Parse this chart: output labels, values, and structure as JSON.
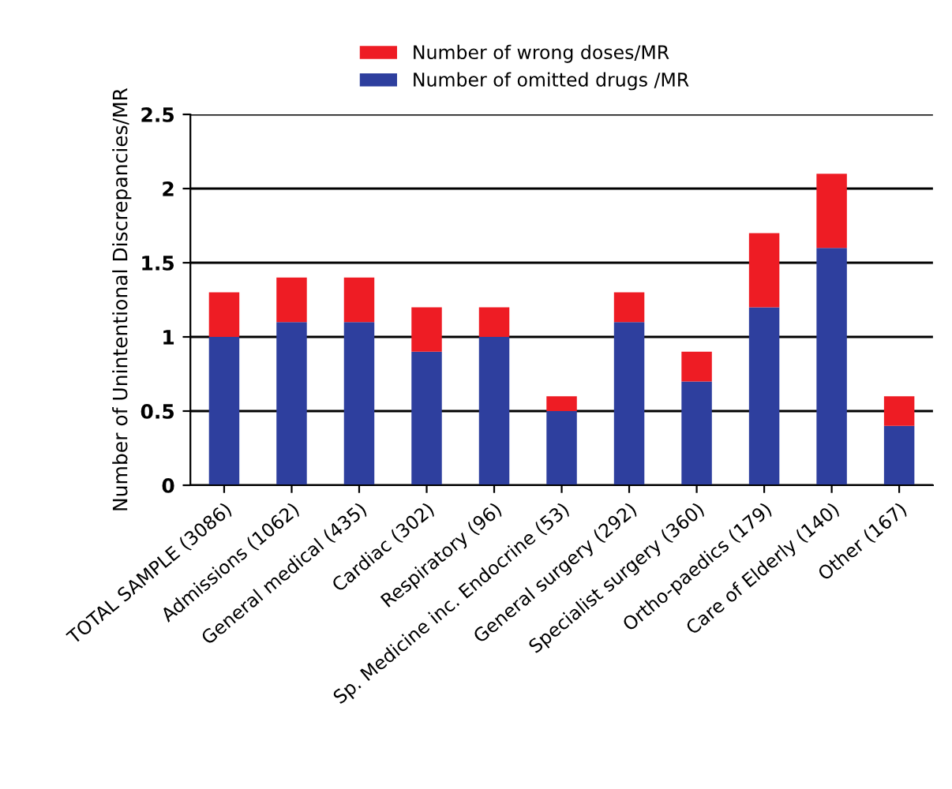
{
  "chart_data": {
    "type": "bar",
    "stacked": true,
    "ylabel": "Number of Unintentional Discrepancies/MR",
    "categories": [
      "TOTAL SAMPLE (3086)",
      "Admissions (1062)",
      "General medical (435)",
      "Cardiac (302)",
      "Respiratory (96)",
      "Sp. Medicine inc. Endocrine (53)",
      "General surgery (292)",
      "Specialist surgery (360)",
      "Ortho-paedics (179)",
      "Care of Elderly (140)",
      "Other (167)"
    ],
    "series": [
      {
        "name": "Number of omitted drugs /MR",
        "color": "#2e3f9e",
        "values": [
          1.0,
          1.1,
          1.1,
          0.9,
          1.0,
          0.5,
          1.1,
          0.7,
          1.2,
          1.6,
          0.4
        ]
      },
      {
        "name": "Number of wrong doses/MR",
        "color": "#ee1c24",
        "values": [
          0.3,
          0.3,
          0.3,
          0.3,
          0.2,
          0.1,
          0.2,
          0.2,
          0.5,
          0.5,
          0.2
        ]
      }
    ],
    "ylim": [
      0,
      2.5
    ],
    "yticks": [
      0,
      0.5,
      1,
      1.5,
      2,
      2.5
    ],
    "grid": "y",
    "legend": "top"
  }
}
